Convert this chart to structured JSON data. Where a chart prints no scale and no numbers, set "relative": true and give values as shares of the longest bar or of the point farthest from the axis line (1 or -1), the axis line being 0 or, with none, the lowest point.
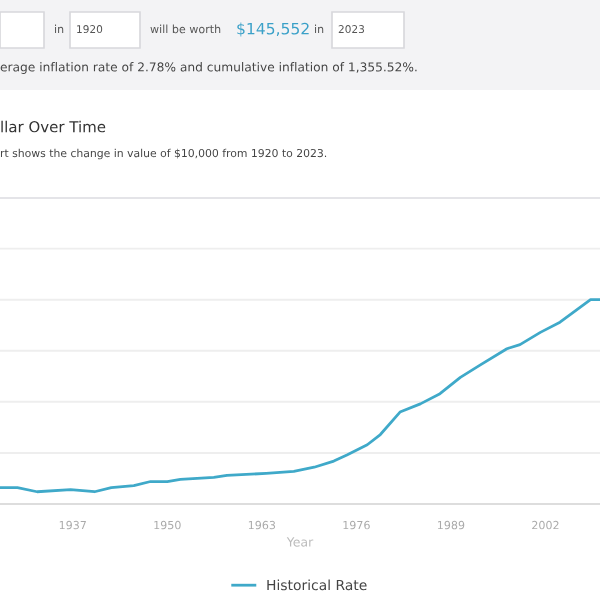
{
  "chart_data": {
    "type": "line",
    "title": "llar Over Time",
    "subtitle": "rt shows the change in value of $10,000 from 1920 to 2023.",
    "xlabel": "Year",
    "annotations": [
      "in",
      "1920",
      "will be worth",
      "$145,552",
      "in",
      "2023",
      "erage inflation rate of 2.78% and cumulative inflation of 1,355.52%."
    ],
    "relative": true,
    "xlim": [
      1927,
      2009.5
    ],
    "xticks": [
      1937,
      1950,
      1963,
      1976,
      1989,
      2002
    ],
    "grid": "y",
    "legend": "bottom",
    "series": [
      {
        "name": "Historical Rate",
        "color": "#3fa9c9",
        "x": [
          1927.1,
          1929.4,
          1932.1,
          1936.7,
          1940,
          1942.3,
          1945.4,
          1947.7,
          1950,
          1951.8,
          1956.4,
          1958.2,
          1963.6,
          1967.4,
          1970.2,
          1972.9,
          1974.7,
          1977.5,
          1979.3,
          1982,
          1984.8,
          1987.5,
          1990.3,
          1993,
          1996.7,
          1998.5,
          2001.3,
          2004,
          2008.2,
          2009.5
        ],
        "values": [
          0.08,
          0.08,
          0.06,
          0.07,
          0.06,
          0.08,
          0.09,
          0.11,
          0.11,
          0.12,
          0.13,
          0.14,
          0.15,
          0.16,
          0.18,
          0.21,
          0.24,
          0.29,
          0.34,
          0.45,
          0.49,
          0.54,
          0.62,
          0.68,
          0.76,
          0.78,
          0.84,
          0.89,
          1,
          1
        ]
      }
    ]
  }
}
